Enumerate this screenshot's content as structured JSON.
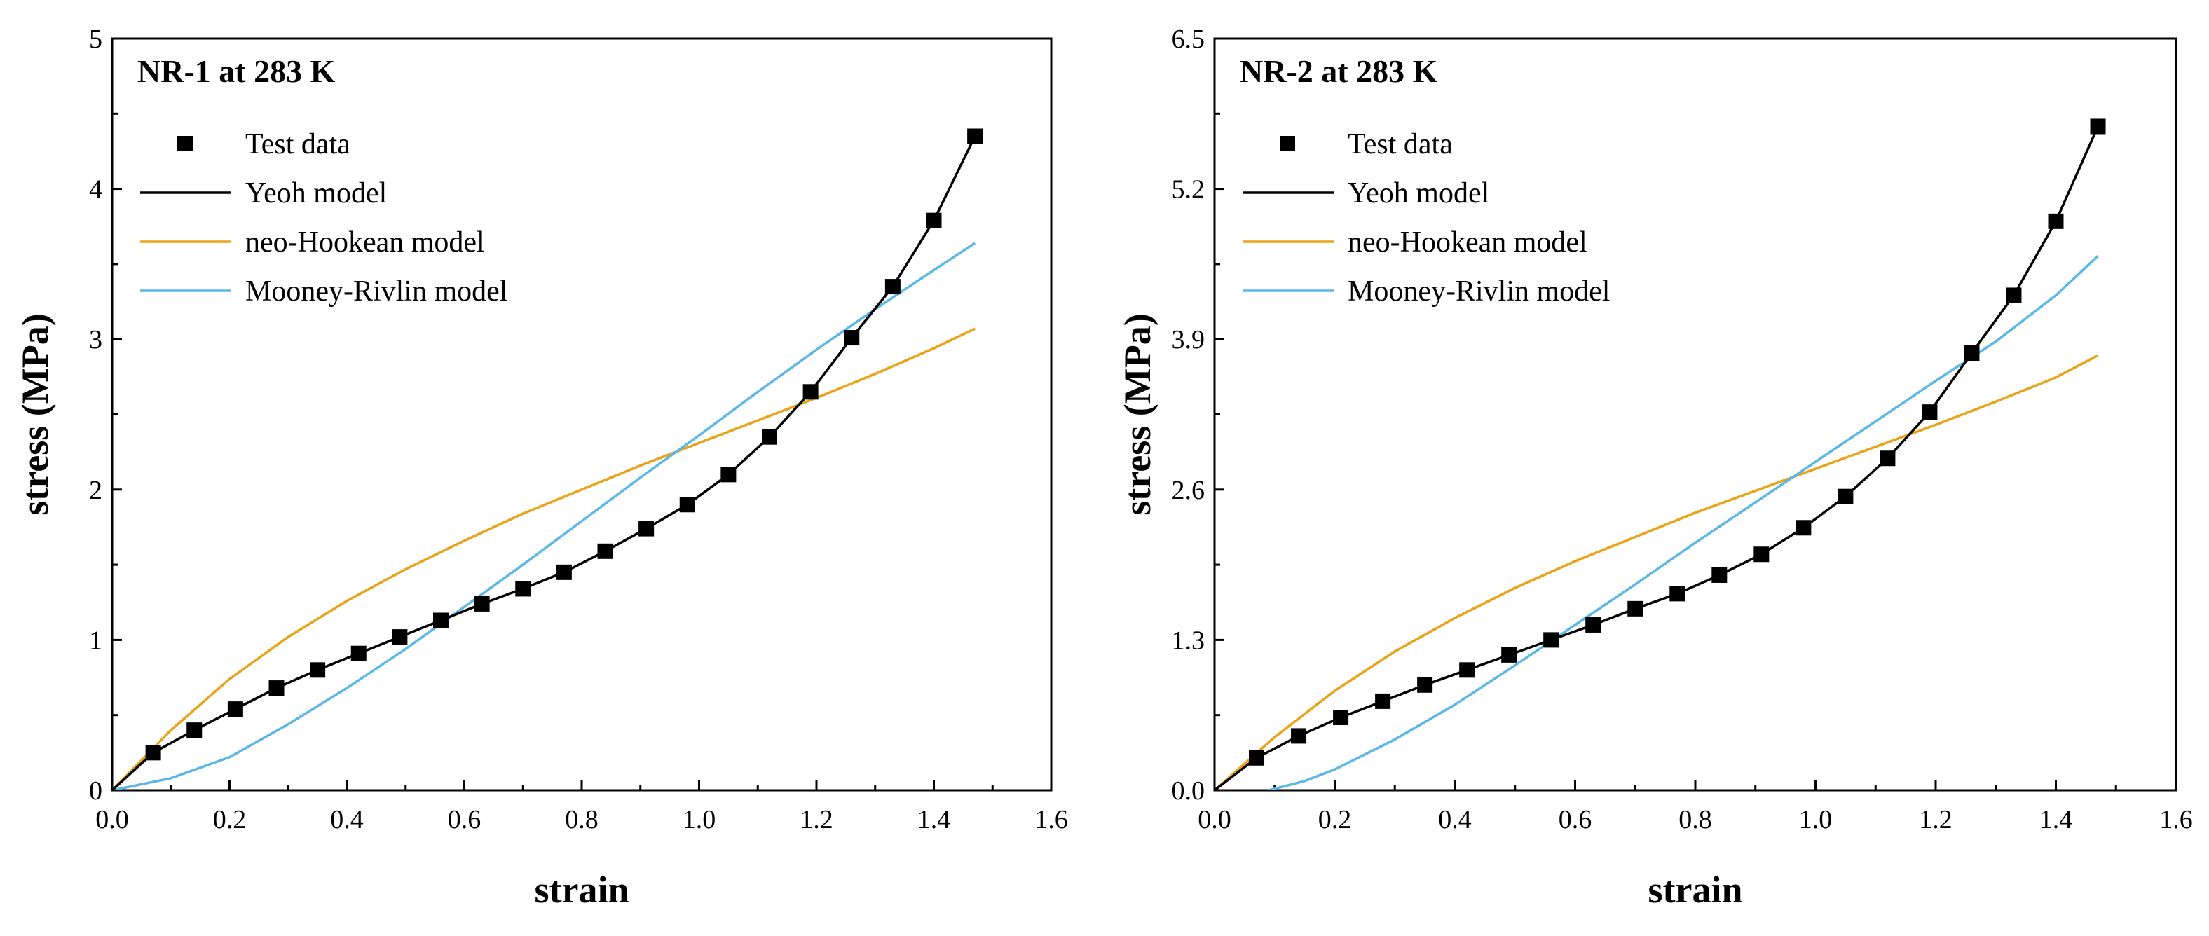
{
  "chart_data": [
    {
      "type": "line",
      "title": "NR-1 at 283 K",
      "xlabel": "strain",
      "ylabel": "stress (MPa)",
      "xlim": [
        0,
        1.6
      ],
      "ylim": [
        0,
        5
      ],
      "xticks": [
        "0.0",
        "0.2",
        "0.4",
        "0.6",
        "0.8",
        "1.0",
        "1.2",
        "1.4",
        "1.6"
      ],
      "yticks": [
        "0",
        "1",
        "2",
        "3",
        "4",
        "5"
      ],
      "legend": [
        "Test data",
        "Yeoh model",
        "neo-Hookean model",
        "Mooney-Rivlin model"
      ],
      "series": [
        {
          "name": "Test data",
          "kind": "scatter",
          "color": "#000000",
          "x": [
            0.07,
            0.14,
            0.21,
            0.28,
            0.35,
            0.42,
            0.49,
            0.56,
            0.63,
            0.7,
            0.77,
            0.84,
            0.91,
            0.98,
            1.05,
            1.12,
            1.19,
            1.26,
            1.33,
            1.4,
            1.47
          ],
          "y": [
            0.25,
            0.4,
            0.54,
            0.68,
            0.8,
            0.91,
            1.02,
            1.13,
            1.24,
            1.34,
            1.45,
            1.59,
            1.74,
            1.9,
            2.1,
            2.35,
            2.65,
            3.01,
            3.35,
            3.79,
            4.35
          ]
        },
        {
          "name": "Yeoh model",
          "kind": "line",
          "color": "#000000",
          "x": [
            0,
            0.07,
            0.14,
            0.21,
            0.28,
            0.35,
            0.42,
            0.49,
            0.56,
            0.63,
            0.7,
            0.77,
            0.84,
            0.91,
            0.98,
            1.05,
            1.12,
            1.19,
            1.26,
            1.33,
            1.4,
            1.47
          ],
          "y": [
            0,
            0.25,
            0.4,
            0.54,
            0.68,
            0.8,
            0.91,
            1.02,
            1.13,
            1.24,
            1.34,
            1.45,
            1.59,
            1.74,
            1.9,
            2.1,
            2.35,
            2.65,
            3.01,
            3.35,
            3.79,
            4.35
          ]
        },
        {
          "name": "neo-Hookean model",
          "kind": "line",
          "color": "#E8A317",
          "x": [
            0,
            0.1,
            0.2,
            0.3,
            0.4,
            0.5,
            0.6,
            0.7,
            0.8,
            0.9,
            1.0,
            1.1,
            1.2,
            1.3,
            1.4,
            1.47
          ],
          "y": [
            0,
            0.4,
            0.74,
            1.02,
            1.26,
            1.47,
            1.66,
            1.84,
            2.0,
            2.16,
            2.31,
            2.46,
            2.61,
            2.77,
            2.94,
            3.07
          ]
        },
        {
          "name": "Mooney-Rivlin model",
          "kind": "line",
          "color": "#5BB8E6",
          "x": [
            0,
            0.1,
            0.2,
            0.3,
            0.4,
            0.5,
            0.6,
            0.7,
            0.8,
            0.9,
            1.0,
            1.1,
            1.2,
            1.3,
            1.4,
            1.47
          ],
          "y": [
            0,
            0.08,
            0.22,
            0.44,
            0.68,
            0.94,
            1.22,
            1.5,
            1.79,
            2.08,
            2.36,
            2.65,
            2.93,
            3.2,
            3.46,
            3.64
          ]
        }
      ]
    },
    {
      "type": "line",
      "title": "NR-2 at 283 K",
      "xlabel": "strain",
      "ylabel": "stress (MPa)",
      "xlim": [
        0,
        1.6
      ],
      "ylim": [
        0,
        6.5
      ],
      "xticks": [
        "0.0",
        "0.2",
        "0.4",
        "0.6",
        "0.8",
        "1.0",
        "1.2",
        "1.4",
        "1.6"
      ],
      "yticks": [
        "0.0",
        "1.3",
        "2.6",
        "3.9",
        "5.2",
        "6.5"
      ],
      "legend": [
        "Test data",
        "Yeoh model",
        "neo-Hookean model",
        "Mooney-Rivlin model"
      ],
      "series": [
        {
          "name": "Test data",
          "kind": "scatter",
          "color": "#000000",
          "x": [
            0.07,
            0.14,
            0.21,
            0.28,
            0.35,
            0.42,
            0.49,
            0.56,
            0.63,
            0.7,
            0.77,
            0.84,
            0.91,
            0.98,
            1.05,
            1.12,
            1.19,
            1.26,
            1.33,
            1.4,
            1.47
          ],
          "y": [
            0.28,
            0.47,
            0.63,
            0.77,
            0.91,
            1.04,
            1.17,
            1.3,
            1.43,
            1.57,
            1.7,
            1.86,
            2.04,
            2.27,
            2.54,
            2.87,
            3.27,
            3.78,
            4.28,
            4.92,
            5.74
          ]
        },
        {
          "name": "Yeoh model",
          "kind": "line",
          "color": "#000000",
          "x": [
            0,
            0.07,
            0.14,
            0.21,
            0.28,
            0.35,
            0.42,
            0.49,
            0.56,
            0.63,
            0.7,
            0.77,
            0.84,
            0.91,
            0.98,
            1.05,
            1.12,
            1.19,
            1.26,
            1.33,
            1.4,
            1.47
          ],
          "y": [
            0,
            0.28,
            0.47,
            0.63,
            0.77,
            0.91,
            1.04,
            1.17,
            1.3,
            1.43,
            1.57,
            1.7,
            1.86,
            2.04,
            2.27,
            2.54,
            2.87,
            3.27,
            3.78,
            4.28,
            4.92,
            5.74
          ]
        },
        {
          "name": "neo-Hookean model",
          "kind": "line",
          "color": "#E8A317",
          "x": [
            0,
            0.1,
            0.2,
            0.3,
            0.4,
            0.5,
            0.6,
            0.7,
            0.8,
            0.9,
            1.0,
            1.1,
            1.2,
            1.3,
            1.4,
            1.47
          ],
          "y": [
            0,
            0.46,
            0.86,
            1.2,
            1.49,
            1.75,
            1.98,
            2.19,
            2.4,
            2.59,
            2.78,
            2.97,
            3.16,
            3.36,
            3.57,
            3.76
          ]
        },
        {
          "name": "Mooney-Rivlin model",
          "kind": "line",
          "color": "#5BB8E6",
          "x": [
            0.09,
            0.15,
            0.2,
            0.3,
            0.4,
            0.5,
            0.6,
            0.7,
            0.8,
            0.9,
            1.0,
            1.1,
            1.2,
            1.3,
            1.4,
            1.47
          ],
          "y": [
            0.0,
            0.08,
            0.18,
            0.44,
            0.74,
            1.08,
            1.43,
            1.78,
            2.14,
            2.49,
            2.84,
            3.19,
            3.54,
            3.88,
            4.28,
            4.62
          ]
        }
      ]
    }
  ]
}
